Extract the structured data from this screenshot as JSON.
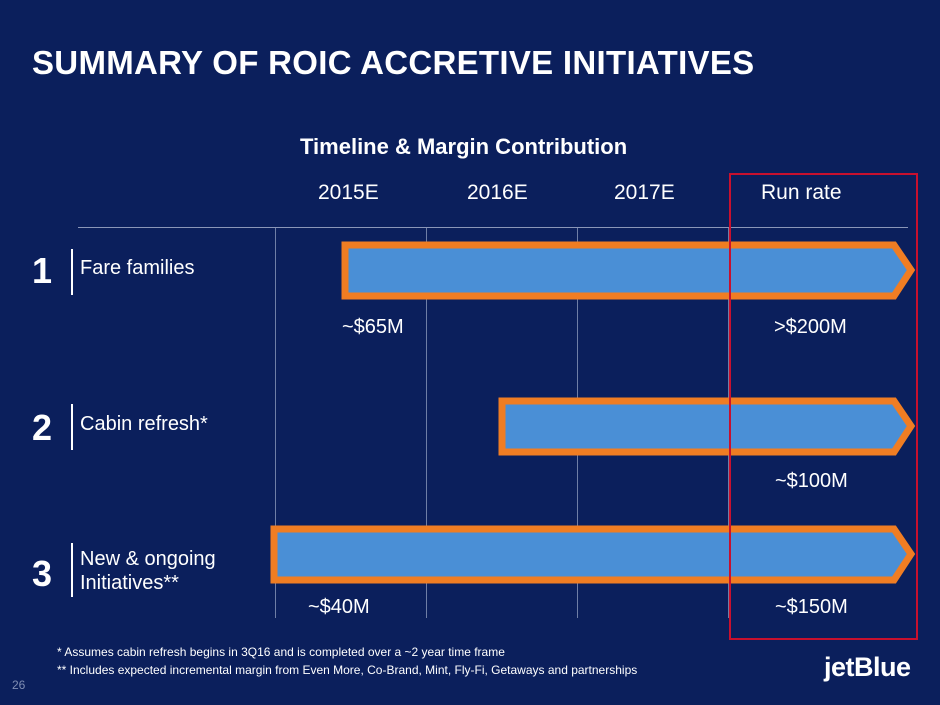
{
  "slide": {
    "title": "SUMMARY OF ROIC ACCRETIVE INITIATIVES",
    "subtitle": "Timeline & Margin Contribution",
    "columns": [
      "2015E",
      "2016E",
      "2017E",
      "Run rate"
    ],
    "initiatives": [
      {
        "number": "1",
        "name": "Fare families",
        "timeline_start": "2015E",
        "value_first": "~$65M",
        "value_run_rate": ">$200M"
      },
      {
        "number": "2",
        "name": "Cabin refresh*",
        "timeline_start": "2016E",
        "value_run_rate": "~$100M"
      },
      {
        "number": "3",
        "name_line1": "New & ongoing",
        "name_line2": "Initiatives**",
        "timeline_start": "2015E",
        "value_first": "~$40M",
        "value_run_rate": "~$150M"
      }
    ],
    "footnotes": [
      "* Assumes cabin refresh begins in 3Q16 and is completed over a ~2 year time frame",
      "** Includes expected incremental margin from Even More, Co-Brand, Mint, Fly-Fi, Getaways and partnerships"
    ],
    "page_number": "26",
    "logo": "jetBlue",
    "colors": {
      "background": "#0b1f5c",
      "bar_fill": "#4a8fd6",
      "bar_border": "#f07d23",
      "highlight_box": "#c8102e"
    }
  }
}
